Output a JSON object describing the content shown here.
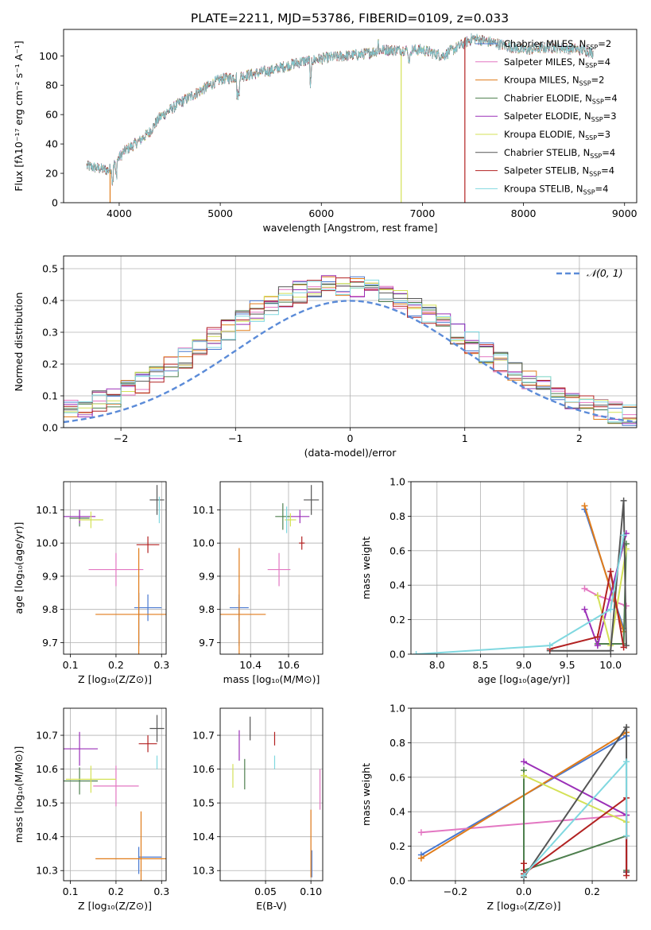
{
  "title": "PLATE=2211, MJD=53786, FIBERID=0109, z=0.033",
  "colors": {
    "Chabrier MILES": "#4878d0",
    "Salpeter MILES": "#e377c2",
    "Kroupa MILES": "#e07b19",
    "Chabrier ELODIE": "#4e7f4e",
    "Salpeter ELODIE": "#9b30b8",
    "Kroupa ELODIE": "#d4e157",
    "Chabrier STELIB": "#555555",
    "Salpeter STELIB": "#b22222",
    "Kroupa STELIB": "#80d8e0"
  },
  "legend_labels": [
    {
      "main": "Chabrier MILES, N",
      "sub": "SSP",
      "tail": "=2",
      "model": "Chabrier MILES"
    },
    {
      "main": "Salpeter MILES, N",
      "sub": "SSP",
      "tail": "=4",
      "model": "Salpeter MILES"
    },
    {
      "main": "Kroupa MILES, N",
      "sub": "SSP",
      "tail": "=2",
      "model": "Kroupa MILES"
    },
    {
      "main": "Chabrier ELODIE, N",
      "sub": "SSP",
      "tail": "=4",
      "model": "Chabrier ELODIE"
    },
    {
      "main": "Salpeter ELODIE, N",
      "sub": "SSP",
      "tail": "=3",
      "model": "Salpeter ELODIE"
    },
    {
      "main": "Kroupa ELODIE, N",
      "sub": "SSP",
      "tail": "=3",
      "model": "Kroupa ELODIE"
    },
    {
      "main": "Chabrier STELIB, N",
      "sub": "SSP",
      "tail": "=4",
      "model": "Chabrier STELIB"
    },
    {
      "main": "Salpeter STELIB, N",
      "sub": "SSP",
      "tail": "=4",
      "model": "Salpeter STELIB"
    },
    {
      "main": "Kroupa STELIB, N",
      "sub": "SSP",
      "tail": "=4",
      "model": "Kroupa STELIB"
    }
  ],
  "chart_data": [
    {
      "id": "spectrum",
      "type": "line",
      "xlabel": "wavelength [Angstrom, rest frame]",
      "ylabel": "Flux [fλ10⁻¹⁷ erg cm⁻² s⁻¹ A⁻¹]",
      "xlim": [
        3450,
        9120
      ],
      "ylim": [
        0,
        118
      ],
      "xticks": [
        4000,
        5000,
        6000,
        7000,
        8000,
        9000
      ],
      "yticks": [
        0,
        20,
        40,
        60,
        80,
        100
      ],
      "continuum_knots": [
        [
          3680,
          25
        ],
        [
          3900,
          22
        ],
        [
          4050,
          35
        ],
        [
          4200,
          42
        ],
        [
          4300,
          48
        ],
        [
          4400,
          58
        ],
        [
          4600,
          68
        ],
        [
          4800,
          76
        ],
        [
          5000,
          84
        ],
        [
          5200,
          86
        ],
        [
          5500,
          90
        ],
        [
          5800,
          96
        ],
        [
          6100,
          99
        ],
        [
          6400,
          101
        ],
        [
          6600,
          104
        ],
        [
          6800,
          104
        ],
        [
          7000,
          104
        ],
        [
          7200,
          100
        ],
        [
          7500,
          112
        ],
        [
          7700,
          109
        ],
        [
          8000,
          104
        ],
        [
          8300,
          106
        ],
        [
          8600,
          104
        ],
        [
          8690,
          102
        ]
      ],
      "artifacts": [
        {
          "model": "Kroupa ELODIE",
          "x": 6790,
          "ymin": 0,
          "ymax": 100
        },
        {
          "model": "Salpeter STELIB",
          "x": 7420,
          "ymin": 0,
          "ymax": 112
        },
        {
          "model": "Kroupa MILES",
          "x": 3910,
          "ymin": 0,
          "ymax": 22
        }
      ]
    },
    {
      "id": "residuals",
      "type": "histogram",
      "xlabel": "(data-model)/error",
      "ylabel": "Normed distribution",
      "xlim": [
        -2.5,
        2.5
      ],
      "ylim": [
        0,
        0.54
      ],
      "xticks": [
        -2,
        -1,
        0,
        1,
        2
      ],
      "yticks": [
        0.0,
        0.1,
        0.2,
        0.3,
        0.4,
        0.5
      ],
      "bins": 40,
      "legend": "𝒩(0, 1)",
      "normal": {
        "mean": 0,
        "sigma": 1
      }
    },
    {
      "id": "age-vs-Z",
      "type": "errorbar",
      "xlabel": "Z [log₁₀(Z/Z⊙)]",
      "ylabel": "age  [log₁₀(age/yr)]",
      "xlim": [
        0.085,
        0.31
      ],
      "ylim": [
        9.665,
        10.185
      ],
      "xticks": [
        0.1,
        0.2,
        0.3
      ],
      "yticks": [
        9.7,
        9.8,
        9.9,
        10.0,
        10.1
      ],
      "points": [
        {
          "model": "Chabrier MILES",
          "x": 0.27,
          "xerr": 0.03,
          "y": 9.805,
          "yerr": 0.04
        },
        {
          "model": "Chabrier MILES",
          "x": 0.25,
          "xerr": 0.0,
          "y": 9.77,
          "yerr": 0.08
        },
        {
          "model": "Salpeter MILES",
          "x": 0.2,
          "xerr": 0.06,
          "y": 9.92,
          "yerr": 0.05
        },
        {
          "model": "Kroupa MILES",
          "x": 0.25,
          "xerr": 0.095,
          "y": 9.785,
          "yerr": 0.2
        },
        {
          "model": "Chabrier ELODIE",
          "x": 0.12,
          "xerr": 0.022,
          "y": 10.075,
          "yerr": 0.025
        },
        {
          "model": "Salpeter ELODIE",
          "x": 0.12,
          "xerr": 0.035,
          "y": 10.08,
          "yerr": 0.02
        },
        {
          "model": "Kroupa ELODIE",
          "x": 0.145,
          "xerr": 0.027,
          "y": 10.07,
          "yerr": 0.025
        },
        {
          "model": "Chabrier STELIB",
          "x": 0.29,
          "xerr": 0.016,
          "y": 10.13,
          "yerr": 0.045
        },
        {
          "model": "Salpeter STELIB",
          "x": 0.27,
          "xerr": 0.025,
          "y": 9.995,
          "yerr": 0.025
        },
        {
          "model": "Kroupa STELIB",
          "x": 0.295,
          "xerr": 0.0,
          "y": 10.1,
          "yerr": 0.04
        }
      ]
    },
    {
      "id": "age-vs-mass",
      "type": "errorbar",
      "xlabel": "mass [log₁₀(M/M⊙)]",
      "ylabel": "",
      "xlim": [
        10.24,
        10.78
      ],
      "ylim": [
        9.665,
        10.185
      ],
      "xticks": [
        10.4,
        10.6
      ],
      "yticks": [
        9.7,
        9.8,
        9.9,
        10.0,
        10.1
      ],
      "points": [
        {
          "model": "Chabrier MILES",
          "x": 10.34,
          "xerr": 0.05,
          "y": 9.805,
          "yerr": 0.04
        },
        {
          "model": "Chabrier MILES",
          "x": 10.34,
          "xerr": 0.0,
          "y": 9.76,
          "yerr": 0.07
        },
        {
          "model": "Salpeter MILES",
          "x": 10.55,
          "xerr": 0.06,
          "y": 9.92,
          "yerr": 0.05
        },
        {
          "model": "Kroupa MILES",
          "x": 10.34,
          "xerr": 0.14,
          "y": 9.785,
          "yerr": 0.2
        },
        {
          "model": "Chabrier ELODIE",
          "x": 10.57,
          "xerr": 0.04,
          "y": 10.08,
          "yerr": 0.04
        },
        {
          "model": "Salpeter ELODIE",
          "x": 10.66,
          "xerr": 0.05,
          "y": 10.08,
          "yerr": 0.02
        },
        {
          "model": "Kroupa ELODIE",
          "x": 10.61,
          "xerr": 0.03,
          "y": 10.07,
          "yerr": 0.02
        },
        {
          "model": "Chabrier STELIB",
          "x": 10.72,
          "xerr": 0.04,
          "y": 10.13,
          "yerr": 0.045
        },
        {
          "model": "Salpeter STELIB",
          "x": 10.67,
          "xerr": 0.015,
          "y": 10.0,
          "yerr": 0.02
        },
        {
          "model": "Kroupa STELIB",
          "x": 10.59,
          "xerr": 0.0,
          "y": 10.07,
          "yerr": 0.04
        }
      ]
    },
    {
      "id": "weight-vs-age",
      "type": "line",
      "xlabel": "age  [log₁₀(age/yr)]",
      "ylabel": "mass weight",
      "xlim": [
        7.7,
        10.3
      ],
      "ylim": [
        0,
        1.0
      ],
      "xticks": [
        8.0,
        8.5,
        9.0,
        9.5,
        10.0
      ],
      "yticks": [
        0.0,
        0.2,
        0.4,
        0.6,
        0.8,
        1.0
      ],
      "series": [
        {
          "model": "Chabrier MILES",
          "points": [
            [
              9.7,
              0.84
            ],
            [
              10.15,
              0.15
            ]
          ]
        },
        {
          "model": "Salpeter MILES",
          "points": [
            [
              9.7,
              0.38
            ],
            [
              9.85,
              0.34
            ],
            [
              10.18,
              0.28
            ]
          ]
        },
        {
          "model": "Kroupa MILES",
          "points": [
            [
              9.7,
              0.86
            ],
            [
              10.15,
              0.13
            ]
          ]
        },
        {
          "model": "Chabrier ELODIE",
          "points": [
            [
              9.85,
              0.06
            ],
            [
              10.15,
              0.06
            ],
            [
              10.18,
              0.64
            ]
          ]
        },
        {
          "model": "Salpeter ELODIE",
          "points": [
            [
              9.7,
              0.26
            ],
            [
              9.85,
              0.05
            ],
            [
              10.18,
              0.7
            ]
          ]
        },
        {
          "model": "Kroupa ELODIE",
          "points": [
            [
              9.85,
              0.34
            ],
            [
              10.0,
              0.05
            ],
            [
              10.18,
              0.61
            ]
          ]
        },
        {
          "model": "Chabrier STELIB",
          "points": [
            [
              9.3,
              0.02
            ],
            [
              10.0,
              0.02
            ],
            [
              10.15,
              0.89
            ],
            [
              10.18,
              0.05
            ]
          ]
        },
        {
          "model": "Salpeter STELIB",
          "points": [
            [
              9.3,
              0.03
            ],
            [
              9.85,
              0.1
            ],
            [
              10.0,
              0.48
            ],
            [
              10.15,
              0.04
            ]
          ]
        },
        {
          "model": "Kroupa STELIB",
          "points": [
            [
              7.76,
              0.0
            ],
            [
              9.3,
              0.05
            ],
            [
              10.0,
              0.26
            ],
            [
              10.15,
              0.69
            ]
          ]
        }
      ]
    },
    {
      "id": "mass-vs-Z",
      "type": "errorbar",
      "xlabel": "Z [log₁₀(Z/Z⊙)]",
      "ylabel": "mass [log₁₀(M/M⊙)]",
      "xlim": [
        0.085,
        0.31
      ],
      "ylim": [
        10.27,
        10.78
      ],
      "xticks": [
        0.1,
        0.2,
        0.3
      ],
      "yticks": [
        10.3,
        10.4,
        10.5,
        10.6,
        10.7
      ],
      "points": [
        {
          "model": "Chabrier MILES",
          "x": 0.275,
          "xerr": 0.025,
          "y": 10.34,
          "yerr": 0.0
        },
        {
          "model": "Chabrier MILES",
          "x": 0.25,
          "xerr": 0.0,
          "y": 10.33,
          "yerr": 0.04
        },
        {
          "model": "Salpeter MILES",
          "x": 0.2,
          "xerr": 0.05,
          "y": 10.55,
          "yerr": 0.06
        },
        {
          "model": "Kroupa MILES",
          "x": 0.255,
          "xerr": 0.1,
          "y": 10.335,
          "yerr": 0.14
        },
        {
          "model": "Chabrier ELODIE",
          "x": 0.12,
          "xerr": 0.04,
          "y": 10.565,
          "yerr": 0.04
        },
        {
          "model": "Salpeter ELODIE",
          "x": 0.12,
          "xerr": 0.04,
          "y": 10.66,
          "yerr": 0.05
        },
        {
          "model": "Kroupa ELODIE",
          "x": 0.145,
          "xerr": 0.055,
          "y": 10.57,
          "yerr": 0.04
        },
        {
          "model": "Chabrier STELIB",
          "x": 0.29,
          "xerr": 0.016,
          "y": 10.72,
          "yerr": 0.04
        },
        {
          "model": "Salpeter STELIB",
          "x": 0.27,
          "xerr": 0.02,
          "y": 10.675,
          "yerr": 0.025
        },
        {
          "model": "Kroupa STELIB",
          "x": 0.29,
          "xerr": 0.0,
          "y": 10.62,
          "yerr": 0.02
        }
      ]
    },
    {
      "id": "mass-vs-EBV",
      "type": "errorbar",
      "xlabel": "E(B-V)",
      "ylabel": "",
      "xlim": [
        0.0,
        0.113
      ],
      "ylim": [
        10.27,
        10.78
      ],
      "xticks": [
        0.05,
        0.1
      ],
      "yticks": [
        10.3,
        10.4,
        10.5,
        10.6,
        10.7
      ],
      "points": [
        {
          "model": "Chabrier MILES",
          "x": 0.101,
          "xerr": 0.0,
          "y": 10.32,
          "yerr": 0.04
        },
        {
          "model": "Salpeter MILES",
          "x": 0.11,
          "xerr": 0.0,
          "y": 10.54,
          "yerr": 0.06
        },
        {
          "model": "Kroupa MILES",
          "x": 0.1,
          "xerr": 0.0,
          "y": 10.38,
          "yerr": 0.1
        },
        {
          "model": "Chabrier ELODIE",
          "x": 0.027,
          "xerr": 0.0,
          "y": 10.585,
          "yerr": 0.045
        },
        {
          "model": "Salpeter ELODIE",
          "x": 0.021,
          "xerr": 0.0,
          "y": 10.67,
          "yerr": 0.045
        },
        {
          "model": "Kroupa ELODIE",
          "x": 0.014,
          "xerr": 0.0,
          "y": 10.58,
          "yerr": 0.035
        },
        {
          "model": "Chabrier STELIB",
          "x": 0.033,
          "xerr": 0.0,
          "y": 10.72,
          "yerr": 0.035
        },
        {
          "model": "Salpeter STELIB",
          "x": 0.06,
          "xerr": 0.0,
          "y": 10.69,
          "yerr": 0.02
        },
        {
          "model": "Kroupa STELIB",
          "x": 0.06,
          "xerr": 0.0,
          "y": 10.62,
          "yerr": 0.02
        }
      ]
    },
    {
      "id": "weight-vs-Z",
      "type": "line",
      "xlabel": "Z [log₁₀(Z/Z⊙)]",
      "ylabel": "mass weight",
      "xlim": [
        -0.33,
        0.33
      ],
      "ylim": [
        0,
        1.0
      ],
      "xticks": [
        -0.2,
        0.0,
        0.2
      ],
      "yticks": [
        0.0,
        0.2,
        0.4,
        0.6,
        0.8,
        1.0
      ],
      "series": [
        {
          "model": "Chabrier MILES",
          "points": [
            [
              -0.3,
              0.15
            ],
            [
              0.3,
              0.84
            ]
          ]
        },
        {
          "model": "Salpeter MILES",
          "points": [
            [
              -0.3,
              0.28
            ],
            [
              0.3,
              0.38
            ]
          ]
        },
        {
          "model": "Kroupa MILES",
          "points": [
            [
              -0.3,
              0.13
            ],
            [
              0.3,
              0.86
            ]
          ]
        },
        {
          "model": "Chabrier ELODIE",
          "points": [
            [
              0.0,
              0.64
            ],
            [
              0.0,
              0.06
            ],
            [
              0.3,
              0.26
            ],
            [
              0.3,
              0.06
            ]
          ]
        },
        {
          "model": "Salpeter ELODIE",
          "points": [
            [
              0.0,
              0.69
            ],
            [
              0.3,
              0.38
            ],
            [
              0.3,
              0.05
            ]
          ]
        },
        {
          "model": "Kroupa ELODIE",
          "points": [
            [
              0.0,
              0.61
            ],
            [
              0.3,
              0.34
            ]
          ]
        },
        {
          "model": "Chabrier STELIB",
          "points": [
            [
              0.0,
              0.02
            ],
            [
              0.3,
              0.89
            ],
            [
              0.3,
              0.05
            ]
          ]
        },
        {
          "model": "Salpeter STELIB",
          "points": [
            [
              0.0,
              0.1
            ],
            [
              0.0,
              0.04
            ],
            [
              0.3,
              0.48
            ],
            [
              0.3,
              0.03
            ]
          ]
        },
        {
          "model": "Kroupa STELIB",
          "points": [
            [
              0.0,
              0.03
            ],
            [
              0.3,
              0.69
            ],
            [
              0.3,
              0.26
            ]
          ]
        }
      ]
    }
  ]
}
